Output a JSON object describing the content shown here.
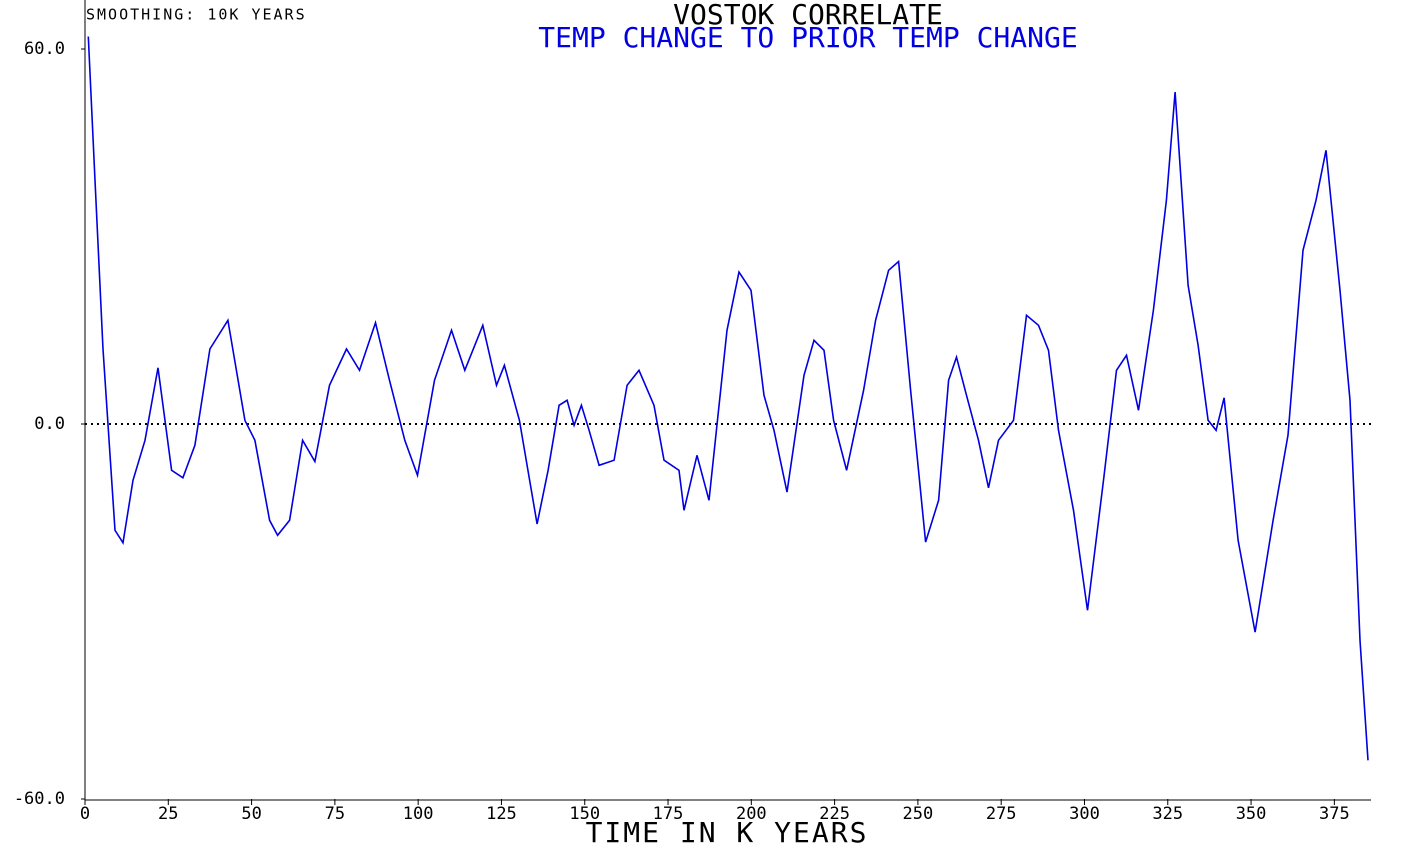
{
  "chart_data": {
    "type": "line",
    "title": "VOSTOK CORRELATE",
    "subtitle": "TEMP CHANGE TO PRIOR TEMP CHANGE",
    "annotation": "SMOOTHING: 10K YEARS",
    "x_label": "TIME IN K YEARS",
    "color": "#0000e0",
    "title_color": "#000000",
    "subtitle_color": "#0000e0",
    "xlim": [
      0,
      386
    ],
    "ylim": [
      -60,
      60
    ],
    "xticks": [
      0,
      25,
      50,
      75,
      100,
      125,
      150,
      175,
      200,
      225,
      250,
      275,
      300,
      325,
      350,
      375
    ],
    "yticks": [
      {
        "value": -60,
        "label": "-60.0"
      },
      {
        "value": 0,
        "label": "0.0"
      },
      {
        "value": 60,
        "label": "60.0"
      }
    ],
    "x": [
      1,
      3,
      5.4,
      9,
      11.4,
      14.4,
      18,
      21.9,
      26,
      29.4,
      33,
      37.5,
      42.9,
      48,
      51,
      55.4,
      57.8,
      61.4,
      65.3,
      69,
      73.4,
      78.5,
      82.4,
      87.2,
      91.4,
      96,
      99.8,
      104.9,
      110,
      114,
      119.4,
      123.5,
      125.9,
      130.4,
      135.7,
      139,
      142.3,
      144.7,
      146.8,
      149,
      151.3,
      154.3,
      158.8,
      162.7,
      166.3,
      170.8,
      173.8,
      178.3,
      179.8,
      183.7,
      187.3,
      192.7,
      196.3,
      199.9,
      203.8,
      206.8,
      210.7,
      215.8,
      218.8,
      221.8,
      224.7,
      228.6,
      233.7,
      237.3,
      241.2,
      244.2,
      247.8,
      252.3,
      256.2,
      259.2,
      261.6,
      264.6,
      268.2,
      271.2,
      274.2,
      278.7,
      282.6,
      286.2,
      289.2,
      292.2,
      296.7,
      300.9,
      305.7,
      309.6,
      312.6,
      316.2,
      320.7,
      324.6,
      327.2,
      331.1,
      334.1,
      337.1,
      339.5,
      341.9,
      346.1,
      351.2,
      356.6,
      361.1,
      365.6,
      369.5,
      372.5,
      376.7,
      379.7,
      382.7,
      385.1
    ],
    "values": [
      62,
      39,
      12,
      -17,
      -19,
      -9,
      -2.6,
      9,
      -7.4,
      -8.6,
      -3.4,
      12,
      16.6,
      0.6,
      -2.6,
      -15.4,
      -17.8,
      -15.4,
      -2.6,
      -6,
      6.2,
      12,
      8.6,
      16.2,
      7,
      -2.6,
      -8.2,
      7,
      15,
      8.6,
      15.8,
      6.2,
      9.4,
      0.6,
      -16,
      -7.4,
      3,
      3.8,
      -0.2,
      3,
      -1,
      -6.6,
      -5.8,
      6.2,
      8.6,
      3,
      -5.8,
      -7.4,
      -13.8,
      -5,
      -12.2,
      15,
      24.3,
      21.4,
      4.6,
      -1,
      -10.9,
      7.8,
      13.4,
      11.8,
      0.6,
      -7.4,
      5.4,
      16.6,
      24.6,
      26,
      5.4,
      -18.9,
      -12.2,
      7,
      10.7,
      4.6,
      -2.6,
      -10.2,
      -2.6,
      0.6,
      17.4,
      15.8,
      11.8,
      -1,
      -13.8,
      -29.8,
      -9,
      8.6,
      11,
      2.2,
      18.2,
      35.8,
      53.1,
      22.2,
      12.6,
      0.6,
      -1,
      4.2,
      -18.6,
      -33.3,
      -15.4,
      -1.8,
      27.8,
      35.8,
      43.8,
      21.4,
      3.8,
      -34.6,
      -53.8
    ]
  }
}
